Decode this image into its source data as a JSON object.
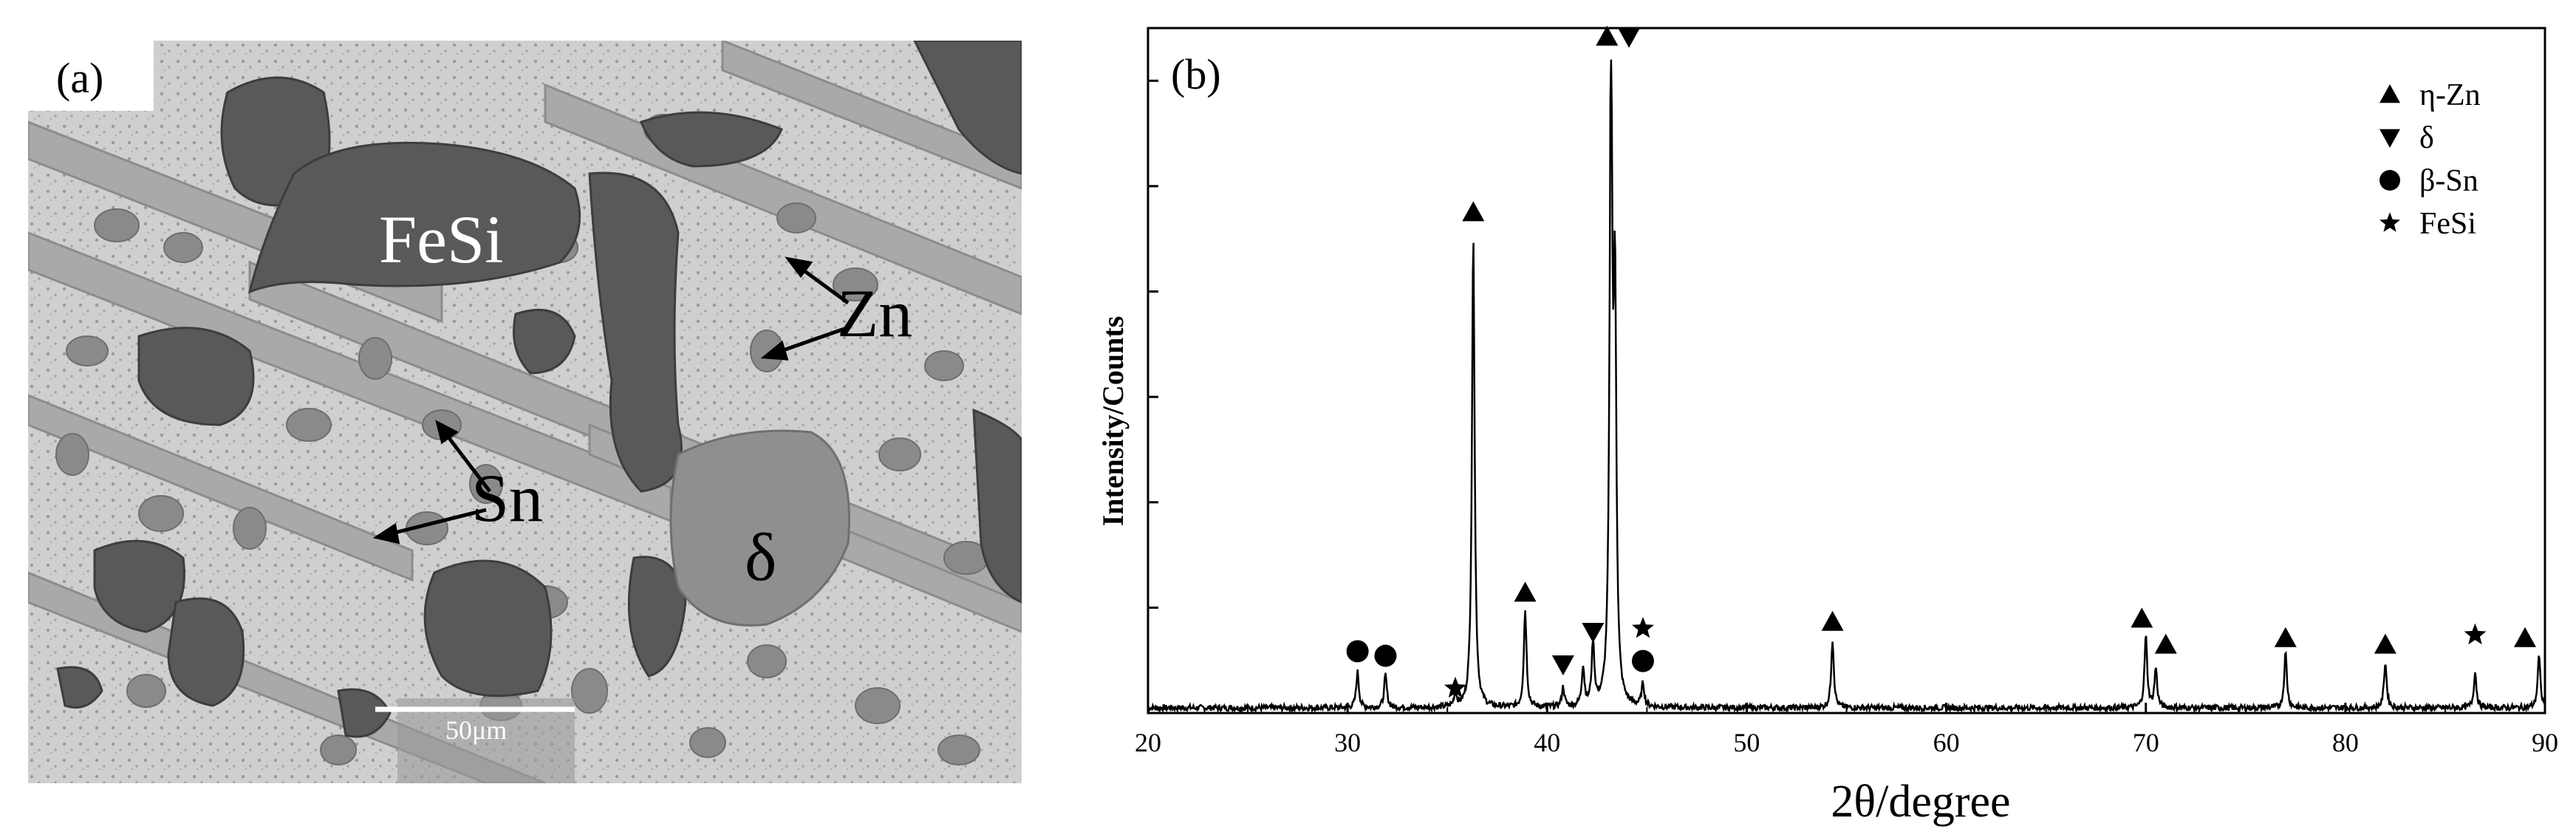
{
  "panel_a": {
    "label": "(a)",
    "phase_labels": {
      "fesi": "FeSi",
      "zn": "Zn",
      "sn": "Sn",
      "delta": "δ"
    },
    "scale_bar": "50μm"
  },
  "chart_data": {
    "type": "line",
    "panel_label": "(b)",
    "xlabel": "2θ/degree",
    "ylabel": "Intensity/Counts",
    "xlim": [
      20,
      90
    ],
    "ylim": [
      0,
      100
    ],
    "x_ticks": [
      20,
      30,
      40,
      50,
      60,
      70,
      80,
      90
    ],
    "y_ticks_labeled": false,
    "legend_position": "top-right",
    "grid": false,
    "series": [
      {
        "peaks": [
          {
            "x": 30.5,
            "y": 5.5
          },
          {
            "x": 31.9,
            "y": 5.0
          },
          {
            "x": 35.4,
            "y": 2.0
          },
          {
            "x": 36.3,
            "y": 73
          },
          {
            "x": 38.9,
            "y": 15
          },
          {
            "x": 40.8,
            "y": 3.0
          },
          {
            "x": 41.8,
            "y": 6.0
          },
          {
            "x": 42.3,
            "y": 9.5
          },
          {
            "x": 43.2,
            "y": 100
          },
          {
            "x": 43.4,
            "y": 60
          },
          {
            "x": 44.8,
            "y": 3.5
          },
          {
            "x": 54.3,
            "y": 10.5
          },
          {
            "x": 70.0,
            "y": 11
          },
          {
            "x": 70.5,
            "y": 6
          },
          {
            "x": 77.0,
            "y": 8.5
          },
          {
            "x": 82.0,
            "y": 7
          },
          {
            "x": 86.5,
            "y": 5.5
          },
          {
            "x": 89.7,
            "y": 8.0
          }
        ],
        "baseline": 0.8
      }
    ],
    "legend": [
      {
        "symbol": "triangle-up",
        "label": "η-Zn"
      },
      {
        "symbol": "triangle-down",
        "label": "δ"
      },
      {
        "symbol": "circle",
        "label": "β-Sn"
      },
      {
        "symbol": "star",
        "label": "FeSi"
      }
    ],
    "annotations": [
      {
        "symbol": "circle",
        "x": 30.5,
        "y": 9.5
      },
      {
        "symbol": "circle",
        "x": 31.9,
        "y": 8.8
      },
      {
        "symbol": "star",
        "x": 35.4,
        "y": 3.8
      },
      {
        "symbol": "triangle-up",
        "x": 36.3,
        "y": 77
      },
      {
        "symbol": "triangle-up",
        "x": 38.9,
        "y": 18.5
      },
      {
        "symbol": "triangle-down",
        "x": 40.8,
        "y": 7.5
      },
      {
        "symbol": "triangle-down",
        "x": 42.3,
        "y": 12.5
      },
      {
        "symbol": "star",
        "x": 44.8,
        "y": 13
      },
      {
        "symbol": "circle",
        "x": 44.8,
        "y": 8
      },
      {
        "symbol": "triangle-up",
        "x": 43.0,
        "y": 104
      },
      {
        "symbol": "triangle-down",
        "x": 44.1,
        "y": 104
      },
      {
        "symbol": "triangle-up",
        "x": 54.3,
        "y": 14
      },
      {
        "symbol": "triangle-up",
        "x": 69.8,
        "y": 14.5
      },
      {
        "symbol": "triangle-up",
        "x": 71.0,
        "y": 10.5
      },
      {
        "symbol": "triangle-up",
        "x": 77.0,
        "y": 11.5
      },
      {
        "symbol": "triangle-up",
        "x": 82.0,
        "y": 10.5
      },
      {
        "symbol": "star",
        "x": 86.5,
        "y": 12
      },
      {
        "symbol": "triangle-up",
        "x": 89.0,
        "y": 11.5
      }
    ]
  },
  "colors": {
    "sem_matrix": "#c8c8c8",
    "sem_dark_phase": "#5a5a5a",
    "line": "#000000"
  }
}
